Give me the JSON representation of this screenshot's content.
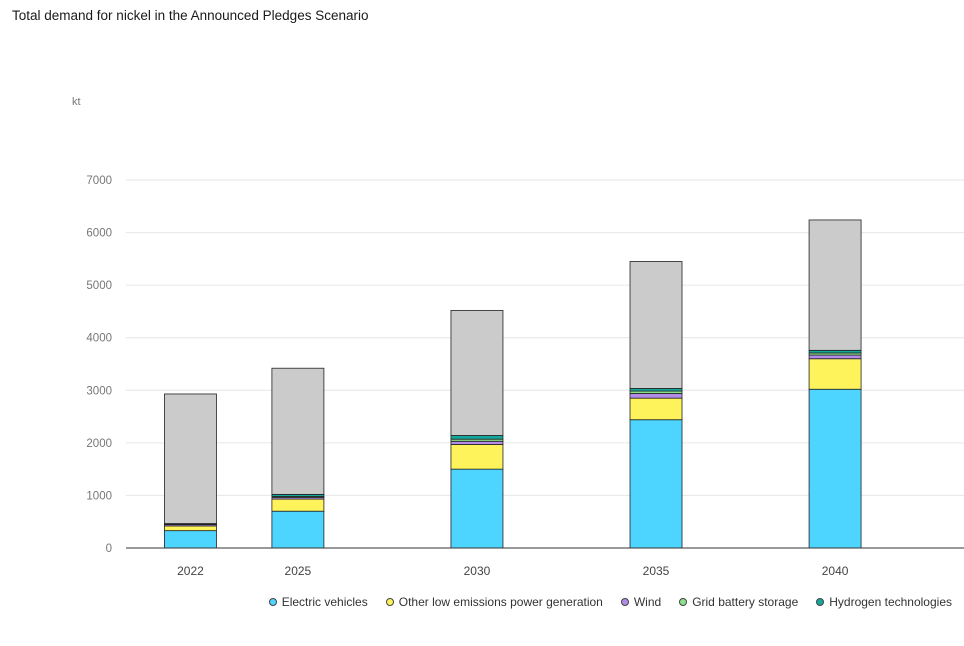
{
  "chart_data": {
    "type": "bar",
    "stacked": true,
    "title": "Total demand for nickel in the Announced Pledges Scenario",
    "ylabel": "kt",
    "xlabel": "",
    "ylim": [
      0,
      7000
    ],
    "yticks": [
      0,
      1000,
      2000,
      3000,
      4000,
      5000,
      6000,
      7000
    ],
    "categories": [
      "2022",
      "2025",
      "2030",
      "2035",
      "2040"
    ],
    "x": [
      2022,
      2025,
      2030,
      2035,
      2040
    ],
    "grid": true,
    "legend_position": "bottom-right",
    "series": [
      {
        "name": "Electric vehicles",
        "color": "#4dd4ff",
        "values": [
          330,
          700,
          1500,
          2440,
          3020
        ]
      },
      {
        "name": "Other low emissions power generation",
        "color": "#fff35c",
        "values": [
          90,
          230,
          470,
          410,
          580
        ]
      },
      {
        "name": "Wind",
        "color": "#b18ce8",
        "values": [
          25,
          30,
          60,
          90,
          70
        ]
      },
      {
        "name": "Grid battery storage",
        "color": "#8be28b",
        "values": [
          10,
          20,
          40,
          45,
          40
        ]
      },
      {
        "name": "Hydrogen technologies",
        "color": "#13a89e",
        "values": [
          10,
          40,
          70,
          50,
          50
        ]
      },
      {
        "name": "",
        "color": "#cbcbcb",
        "values": [
          2465,
          2400,
          2380,
          2415,
          2480
        ]
      }
    ]
  }
}
